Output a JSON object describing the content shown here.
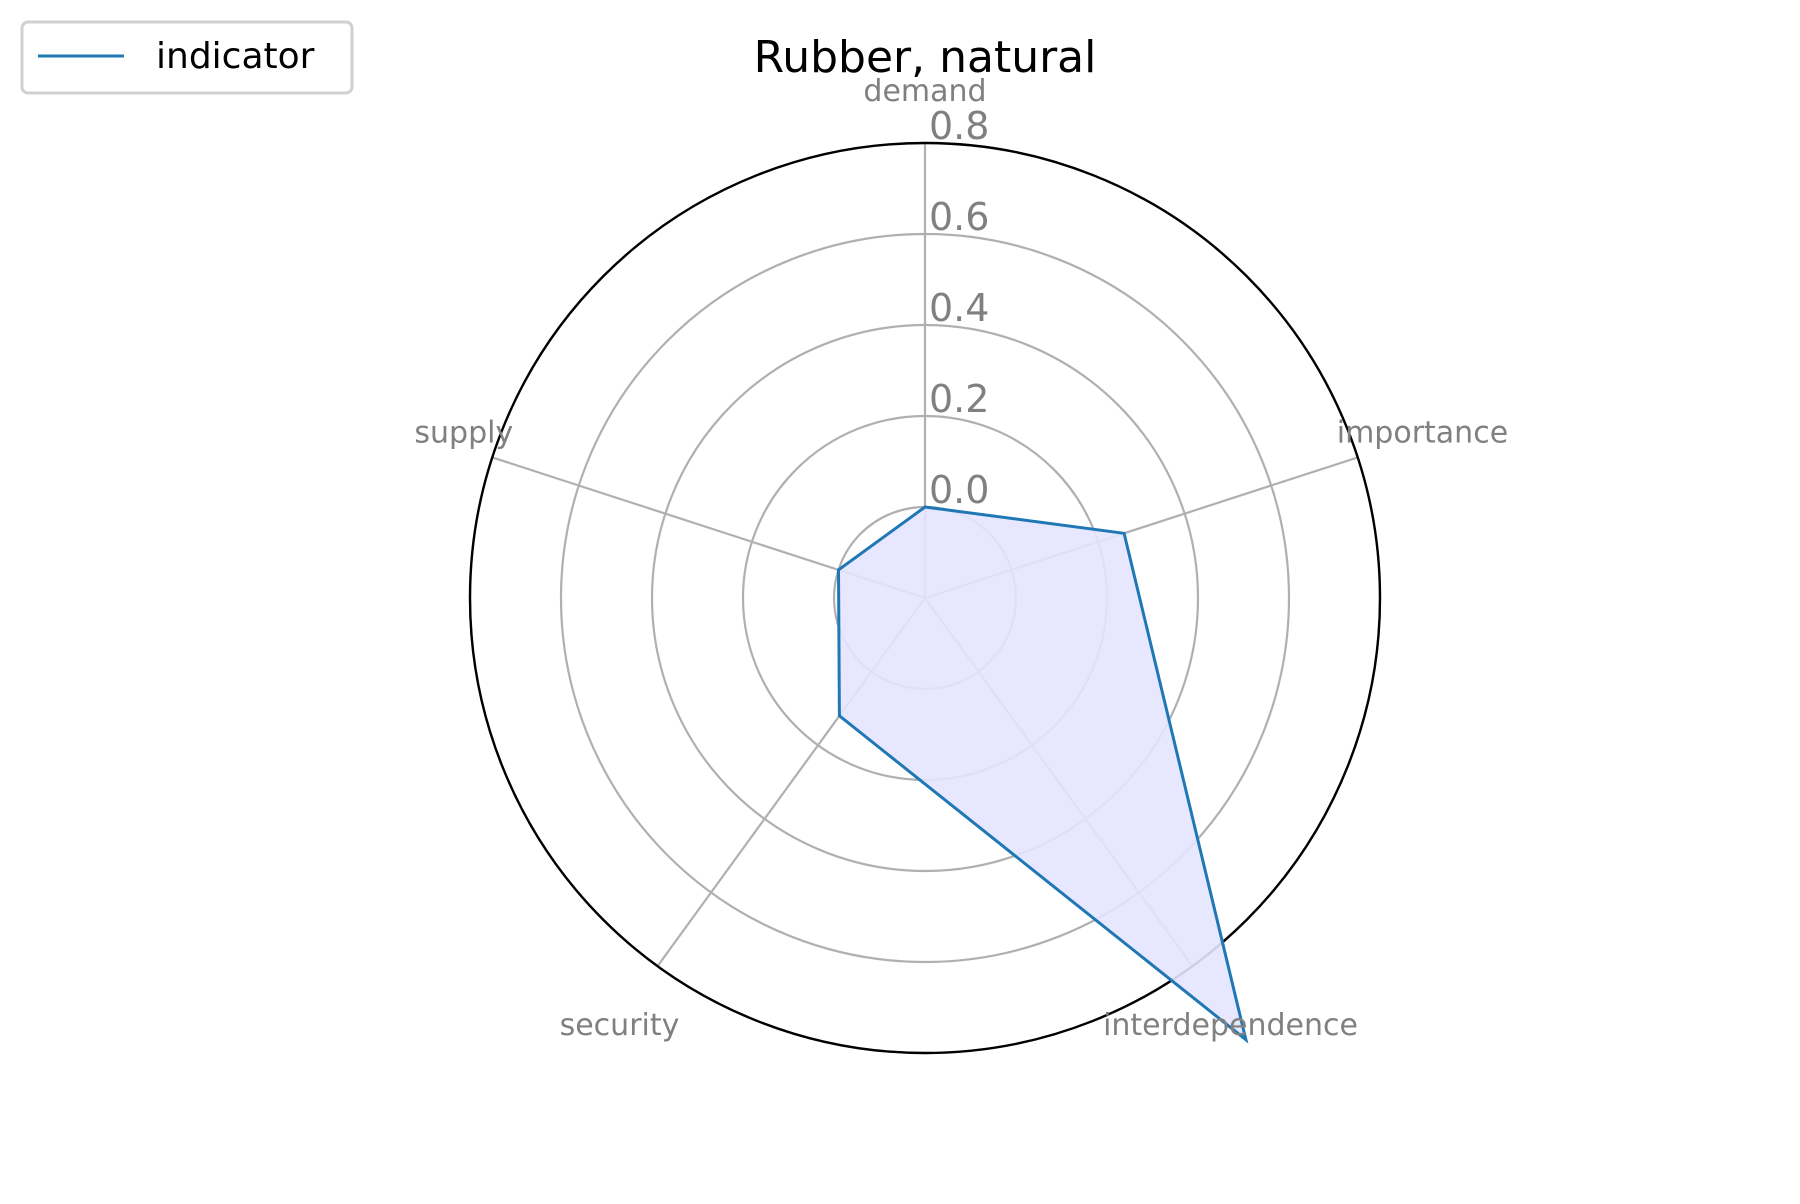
{
  "chart_data": {
    "type": "radar",
    "title": "Rubber, natural",
    "categories": [
      "demand",
      "importance",
      "interdependence",
      "security",
      "supply"
    ],
    "series": [
      {
        "name": "indicator",
        "values": [
          0.0,
          0.26,
          1.0,
          0.12,
          0.0
        ]
      }
    ],
    "radial_ticks": [
      "0.0",
      "0.2",
      "0.4",
      "0.6",
      "0.8"
    ],
    "radial_tick_values": [
      0.0,
      0.2,
      0.4,
      0.6,
      0.8
    ],
    "rlim": [
      -0.2,
      0.8
    ],
    "grid": true,
    "legend_placement": "top-left",
    "colors": {
      "series_line": "#1f77b4",
      "series_fill": "#e4e4ff",
      "grid": "#b0b0b0",
      "tick_label": "#808080",
      "frame": "#000000",
      "title": "#000000"
    }
  }
}
